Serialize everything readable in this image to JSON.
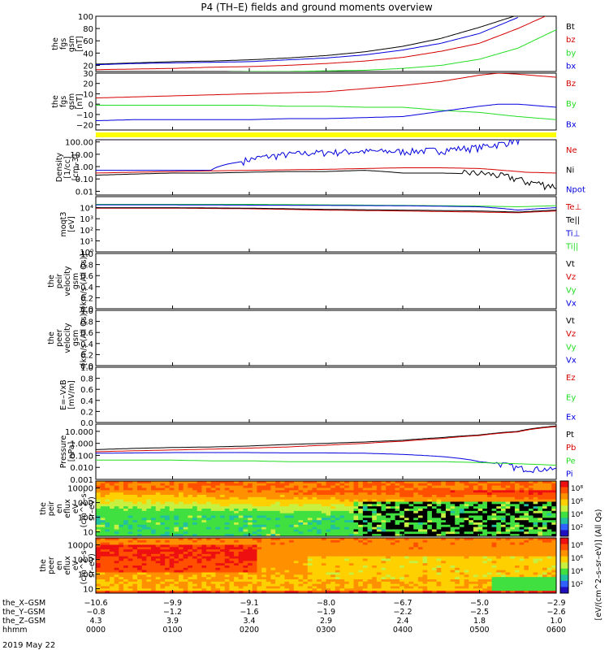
{
  "title": "P4 (TH–E) fields and ground moments overview",
  "date_label": "2019 May 22",
  "colors": {
    "black": "#000000",
    "red": "#d40000",
    "green": "#22dd22",
    "blue": "#0000dd",
    "yellow": "#ffff00"
  },
  "colorbars": {
    "ticks": [
      "10⁸",
      "10⁶",
      "10⁴",
      "10²"
    ],
    "label": "[eV/(cm^2–s–sr–eV)] (All Qs)"
  },
  "time_axis": {
    "rows": [
      {
        "label": "the_X–GSM",
        "values": [
          "−10.6",
          "−9.9",
          "−9.1",
          "−8.0",
          "−6.7",
          "−5.0",
          "−2.9"
        ]
      },
      {
        "label": "the_Y–GSM",
        "values": [
          "−0.8",
          "−1.2",
          "−1.6",
          "−1.9",
          "−2.2",
          "−2.5",
          "−2.6"
        ]
      },
      {
        "label": "the_Z–GSM",
        "values": [
          "4.3",
          "3.9",
          "3.4",
          "2.9",
          "2.4",
          "1.8",
          "1.0"
        ]
      },
      {
        "label": "hhmm",
        "values": [
          "0000",
          "0100",
          "0200",
          "0300",
          "0400",
          "0500",
          "0600"
        ]
      }
    ]
  },
  "chart_data": [
    {
      "type": "line",
      "ylabel_lines": [
        "the",
        "fgs",
        "gsm",
        "[nT]"
      ],
      "ylim": [
        10,
        100
      ],
      "yticks": [
        "100",
        "80",
        "60",
        "40",
        "20"
      ],
      "legend": [
        {
          "name": "Bt",
          "color": "#000000"
        },
        {
          "name": "bz",
          "color": "#d40000"
        },
        {
          "name": "by",
          "color": "#22dd22"
        },
        {
          "name": "bx",
          "color": "#0000dd"
        }
      ],
      "x": [
        0,
        0.5,
        1,
        1.5,
        2,
        2.5,
        3,
        3.5,
        4,
        4.5,
        5,
        5.5,
        6
      ],
      "series": [
        {
          "name": "Bt",
          "color": "#000000",
          "values": [
            22,
            24,
            26,
            27,
            29,
            32,
            36,
            42,
            51,
            64,
            82,
            102,
            null
          ]
        },
        {
          "name": "bz",
          "color": "#d40000",
          "values": [
            13,
            14,
            15,
            17,
            18,
            20,
            23,
            27,
            33,
            43,
            56,
            80,
            108
          ]
        },
        {
          "name": "bx",
          "color": "#0000dd",
          "values": [
            21,
            23,
            24,
            25,
            26,
            29,
            32,
            37,
            45,
            56,
            72,
            98,
            null
          ]
        },
        {
          "name": "by",
          "color": "#22dd22",
          "values": [
            9,
            9,
            9,
            9,
            10,
            10,
            11,
            12,
            15,
            20,
            30,
            48,
            78
          ]
        }
      ]
    },
    {
      "type": "line",
      "ylabel_lines": [
        "the",
        "fgs",
        "gsm",
        "[nT]"
      ],
      "ylim": [
        -25,
        30
      ],
      "yticks": [
        "30",
        "20",
        "10",
        "0",
        "−10",
        "−20"
      ],
      "legend": [
        {
          "name": "Bz",
          "color": "#d40000"
        },
        {
          "name": "By",
          "color": "#22dd22"
        },
        {
          "name": "Bx",
          "color": "#0000dd"
        }
      ],
      "x": [
        0,
        0.5,
        1,
        1.5,
        2,
        2.5,
        3,
        3.5,
        4,
        4.5,
        5,
        5.25,
        5.5,
        6
      ],
      "series": [
        {
          "name": "Bz",
          "color": "#d40000",
          "values": [
            6,
            7,
            8,
            9,
            10,
            11,
            12,
            15,
            18,
            22,
            28,
            30,
            29,
            26
          ]
        },
        {
          "name": "By",
          "color": "#22dd22",
          "values": [
            -1,
            -1,
            -1,
            -1,
            -1,
            -2,
            -2,
            -3,
            -3,
            -6,
            -8,
            -10,
            -12,
            -15
          ]
        },
        {
          "name": "Bx",
          "color": "#0000dd",
          "values": [
            -16,
            -15,
            -15,
            -15,
            -15,
            -14,
            -14,
            -13,
            -12,
            -7,
            -2,
            0,
            0,
            -3
          ]
        }
      ]
    },
    {
      "type": "line",
      "scale": "log",
      "ylabel_lines": [
        "Density",
        "[1/cc]",
        "[cm–3]"
      ],
      "ylim": [
        0.005,
        150
      ],
      "yticks": [
        "100.00",
        "10.00",
        "1.00",
        "0.10",
        "0.01"
      ],
      "legend": [
        {
          "name": "Ne",
          "color": "#d40000"
        },
        {
          "name": "Ni",
          "color": "#000000"
        },
        {
          "name": "Npot",
          "color": "#0000dd"
        }
      ],
      "x": [
        0,
        0.5,
        1,
        1.5,
        2,
        2.5,
        3,
        3.5,
        4,
        4.5,
        5,
        5.3,
        5.6,
        6
      ],
      "series": [
        {
          "name": "Npot",
          "color": "#0000dd",
          "values": [
            0.5,
            0.5,
            0.5,
            0.5,
            3,
            8,
            12,
            14,
            14,
            18,
            30,
            60,
            150,
            null
          ]
        },
        {
          "name": "Ne",
          "color": "#d40000",
          "values": [
            0.3,
            0.35,
            0.4,
            0.45,
            0.5,
            0.55,
            0.6,
            0.7,
            0.8,
            0.8,
            0.7,
            0.5,
            0.35,
            0.3
          ]
        },
        {
          "name": "Ni",
          "color": "#000000",
          "values": [
            0.2,
            0.25,
            0.3,
            0.3,
            0.35,
            0.4,
            0.4,
            0.5,
            0.3,
            0.3,
            0.25,
            0.15,
            0.05,
            0.02
          ]
        }
      ]
    },
    {
      "type": "line",
      "scale": "log",
      "ylabel_lines": [
        "moqt3",
        "[eV]"
      ],
      "ylim": [
        1,
        100000
      ],
      "yticks": [
        "10⁴",
        "10³",
        "10²",
        "10¹",
        "10⁰"
      ],
      "legend": [
        {
          "name": "Te⊥",
          "color": "#d40000"
        },
        {
          "name": "Te||",
          "color": "#000000"
        },
        {
          "name": "Ti⊥",
          "color": "#0000dd"
        },
        {
          "name": "Ti||",
          "color": "#22dd22"
        }
      ],
      "x": [
        0,
        1,
        2,
        3,
        4,
        5,
        5.5,
        6
      ],
      "series": [
        {
          "name": "Ti||",
          "color": "#22dd22",
          "values": [
            20000,
            20000,
            20000,
            18000,
            16000,
            14000,
            12000,
            15000
          ]
        },
        {
          "name": "Ti⊥",
          "color": "#0000dd",
          "values": [
            18000,
            18000,
            17000,
            16000,
            15000,
            12000,
            6000,
            10000
          ]
        },
        {
          "name": "Te⊥",
          "color": "#d40000",
          "values": [
            9000,
            9000,
            8000,
            6000,
            5000,
            4000,
            3500,
            5000
          ]
        },
        {
          "name": "Te||",
          "color": "#000000",
          "values": [
            10000,
            10000,
            9000,
            7000,
            6000,
            5000,
            4000,
            6000
          ]
        }
      ]
    },
    {
      "type": "line",
      "ylabel_lines": [
        "the",
        "peir",
        "velocity",
        "gsm",
        "[km/s (All Qs)]"
      ],
      "ylim": [
        0,
        1
      ],
      "yticks": [
        "1.0",
        "0.8",
        "0.6",
        "0.4",
        "0.2",
        "0.0"
      ],
      "legend": [
        {
          "name": "Vt",
          "color": "#000000"
        },
        {
          "name": "Vz",
          "color": "#d40000"
        },
        {
          "name": "Vy",
          "color": "#22dd22"
        },
        {
          "name": "Vx",
          "color": "#0000dd"
        }
      ],
      "series": []
    },
    {
      "type": "line",
      "ylabel_lines": [
        "the",
        "peer",
        "velocity",
        "gsm",
        "[km/s (All Qs)]"
      ],
      "ylim": [
        0,
        1
      ],
      "yticks": [
        "1.0",
        "0.8",
        "0.6",
        "0.4",
        "0.2",
        "0.0"
      ],
      "legend": [
        {
          "name": "Vt",
          "color": "#000000"
        },
        {
          "name": "Vz",
          "color": "#d40000"
        },
        {
          "name": "Vy",
          "color": "#22dd22"
        },
        {
          "name": "Vx",
          "color": "#0000dd"
        }
      ],
      "series": []
    },
    {
      "type": "line",
      "ylabel_lines": [
        "E=–VxB",
        "[mV/m]"
      ],
      "ylim": [
        0,
        1
      ],
      "yticks": [
        "1.0",
        "0.8",
        "0.6",
        "0.4",
        "0.2",
        "0.0"
      ],
      "legend": [
        {
          "name": "Ez",
          "color": "#d40000"
        },
        {
          "name": "Ey",
          "color": "#22dd22"
        },
        {
          "name": "Ex",
          "color": "#0000dd"
        }
      ],
      "series": []
    },
    {
      "type": "line",
      "scale": "log",
      "ylabel_lines": [
        "Pressure",
        "[nPa]"
      ],
      "ylim": [
        0.001,
        40
      ],
      "yticks": [
        "10.000",
        "1.000",
        "0.100",
        "0.010",
        "0.001"
      ],
      "legend": [
        {
          "name": "Pt",
          "color": "#000000"
        },
        {
          "name": "Pb",
          "color": "#d40000"
        },
        {
          "name": "Pe",
          "color": "#22dd22"
        },
        {
          "name": "Pi",
          "color": "#0000dd"
        }
      ],
      "x": [
        0,
        0.5,
        1,
        1.5,
        2,
        2.5,
        3,
        3.5,
        4,
        4.5,
        5,
        5.5,
        6
      ],
      "series": [
        {
          "name": "Pt",
          "color": "#000000",
          "values": [
            0.3,
            0.38,
            0.45,
            0.5,
            0.6,
            0.8,
            1.0,
            1.3,
            1.8,
            3.0,
            5.0,
            10,
            28
          ]
        },
        {
          "name": "Pb",
          "color": "#d40000",
          "values": [
            0.2,
            0.24,
            0.28,
            0.33,
            0.4,
            0.5,
            0.7,
            1.0,
            1.5,
            2.5,
            4.5,
            9,
            25
          ]
        },
        {
          "name": "Pi",
          "color": "#0000dd",
          "values": [
            0.15,
            0.16,
            0.17,
            0.17,
            0.17,
            0.16,
            0.16,
            0.15,
            0.12,
            0.08,
            0.03,
            0.008,
            0.006
          ]
        },
        {
          "name": "Pe",
          "color": "#22dd22",
          "values": [
            0.04,
            0.04,
            0.04,
            0.035,
            0.035,
            0.03,
            0.03,
            0.03,
            0.03,
            0.03,
            0.025,
            0.02,
            0.015
          ]
        }
      ]
    },
    {
      "type": "heatmap",
      "scale": "log",
      "ylabel_lines": [
        "the",
        "peir",
        "en",
        "eflux",
        "eV",
        "(cm^2–s–",
        "sr–eV)"
      ],
      "ylim": [
        5,
        30000
      ],
      "yticks": [
        "10000",
        "1000",
        "100",
        "10"
      ],
      "note": "ion energy-time spectrogram"
    },
    {
      "type": "heatmap",
      "scale": "log",
      "ylabel_lines": [
        "the",
        "peer",
        "en",
        "eflux",
        "eV",
        "(cm^2–s–",
        "sr–eV)"
      ],
      "ylim": [
        5,
        30000
      ],
      "yticks": [
        "10000",
        "1000",
        "100",
        "10"
      ],
      "note": "electron energy-time spectrogram"
    }
  ]
}
